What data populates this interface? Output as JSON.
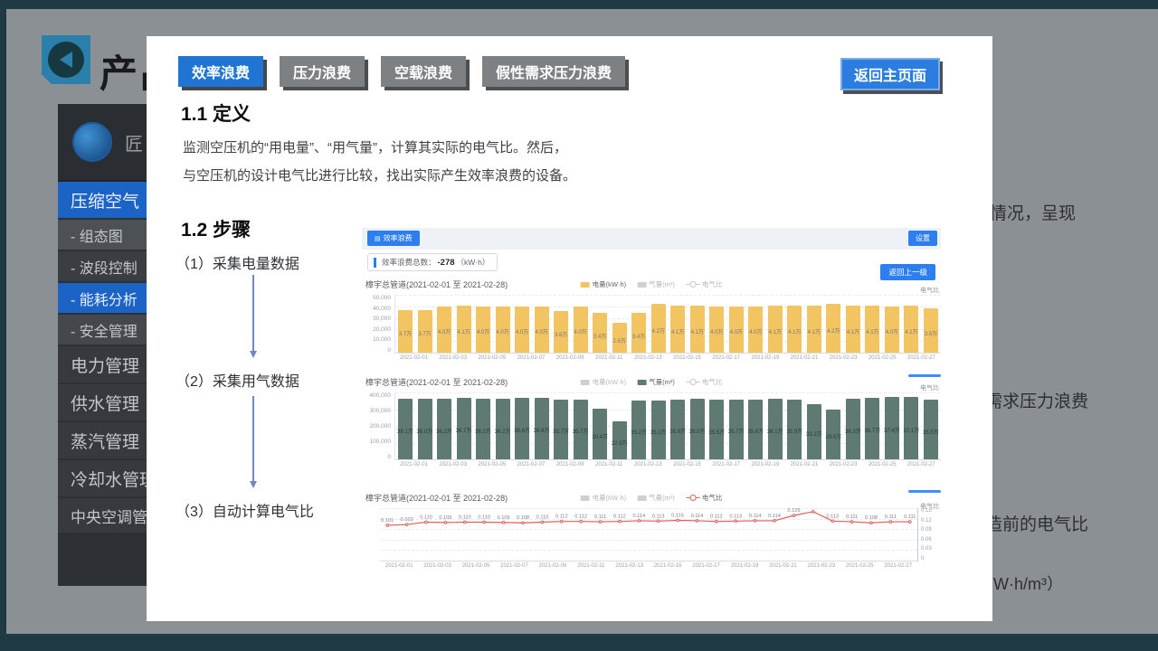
{
  "background_slide": {
    "title": "产品",
    "sidebar": {
      "brand": "匠",
      "items": [
        {
          "label": "压缩空气",
          "h": 40,
          "fs": 19,
          "bg": "#1b63c5",
          "active": true
        },
        {
          "label": "- 组态图",
          "h": 33,
          "fs": 16,
          "bg": "#4d5055",
          "active": false
        },
        {
          "label": "- 波段控制",
          "h": 33,
          "fs": 16,
          "bg": "#3a3d42",
          "active": false
        },
        {
          "label": "- 能耗分析",
          "h": 33,
          "fs": 16,
          "bg": "#1b63c5",
          "active": true
        },
        {
          "label": "- 安全管理",
          "h": 33,
          "fs": 16,
          "bg": "#44474c",
          "active": false
        },
        {
          "label": "电力管理",
          "h": 40,
          "fs": 19,
          "bg": "#37393e",
          "active": false
        },
        {
          "label": "供水管理",
          "h": 40,
          "fs": 19,
          "bg": "#37393e",
          "active": false
        },
        {
          "label": "蒸汽管理",
          "h": 40,
          "fs": 19,
          "bg": "#37393e",
          "active": false
        },
        {
          "label": "冷却水管理",
          "h": 40,
          "fs": 19,
          "bg": "#37393e",
          "active": false
        },
        {
          "label": "中央空调管理",
          "h": 38,
          "fs": 17,
          "bg": "#37393e",
          "active": false
        }
      ]
    },
    "fragments": [
      "情况，呈现",
      "需求压力浪费",
      "造前的电气比",
      "W·h/m³）"
    ]
  },
  "panel": {
    "tabs": [
      {
        "label": "效率浪费",
        "active": true
      },
      {
        "label": "压力浪费",
        "active": false
      },
      {
        "label": "空载浪费",
        "active": false
      },
      {
        "label": "假性需求压力浪费",
        "active": false
      }
    ],
    "back_button": "返回主页面",
    "sections": {
      "def_heading": "1.1 定义",
      "def_line1": "监测空压机的“用电量”、“用气量”，计算其实际的电气比。然后，",
      "def_line2": "与空压机的设计电气比进行比较，找出实际产生效率浪费的设备。",
      "steps_heading": "1.2 步骤",
      "steps": [
        "（1）采集电量数据",
        "（2）采集用气数据",
        "（3）自动计算电气比"
      ]
    },
    "app": {
      "tool_button": "效率浪费",
      "tool_icon": {
        "name": "bar-chart-icon",
        "glyph": "▤"
      },
      "settings_button": "设置",
      "summary_prefix": "效率浪费总数：",
      "summary_value": "-278",
      "summary_unit": "（kW·h）",
      "back_link": "返回上一级"
    }
  },
  "chart_data": [
    {
      "type": "bar",
      "title": "樟宇总管道(2021-02-01 至 2021-02-28)",
      "right_axis_label": "电气比",
      "bar_color": "#f2c462",
      "label_color": "#75787c",
      "legend": [
        {
          "label": "电量(kW·h)",
          "type": "square",
          "color": "#f2c462",
          "text_color": "#5f6468"
        },
        {
          "label": "气量(m³)",
          "type": "square",
          "color": "#ccd0d5",
          "text_color": "#b3b8bd"
        },
        {
          "label": "电气比",
          "type": "ring",
          "color": "#c4c8cd",
          "text_color": "#b3b8bd"
        }
      ],
      "ylim": [
        0,
        50000
      ],
      "yticks": [
        "50,000",
        "40,000",
        "30,000",
        "20,000",
        "10,000",
        "0"
      ],
      "x_ticks": [
        "2021-02-01",
        "2021-02-03",
        "2021-02-05",
        "2021-02-07",
        "2021-02-09",
        "2021-02-11",
        "2021-02-13",
        "2021-02-15",
        "2021-02-17",
        "2021-02-19",
        "2021-02-21",
        "2021-02-23",
        "2021-02-25",
        "2021-02-27"
      ],
      "values": [
        37000,
        37000,
        40000,
        41000,
        40000,
        40000,
        40000,
        40000,
        36000,
        40000,
        34000,
        26000,
        34000,
        42000,
        41000,
        41000,
        40000,
        40000,
        40000,
        41000,
        41000,
        41000,
        42000,
        41000,
        41000,
        40000,
        41000,
        38000
      ],
      "labels": [
        "3.7万",
        "3.7万",
        "4.0万",
        "4.1万",
        "4.0万",
        "4.0万",
        "4.0万",
        "4.0万",
        "3.6万",
        "4.0万",
        "3.4万",
        "2.6万",
        "3.4万",
        "4.2万",
        "4.1万",
        "4.1万",
        "4.0万",
        "4.0万",
        "4.0万",
        "4.1万",
        "4.1万",
        "4.1万",
        "4.2万",
        "4.1万",
        "4.1万",
        "4.0万",
        "4.1万",
        "3.8万"
      ]
    },
    {
      "type": "bar",
      "title": "樟宇总管道(2021-02-01 至 2021-02-28)",
      "right_axis_label": "电气比",
      "bar_color": "#5f7a73",
      "label_color": "#2f3835",
      "legend": [
        {
          "label": "电量(kW·h)",
          "type": "square",
          "color": "#ccd0d5",
          "text_color": "#b3b8bd"
        },
        {
          "label": "气量(m³)",
          "type": "square",
          "color": "#5f7a73",
          "text_color": "#5f6468"
        },
        {
          "label": "电气比",
          "type": "ring",
          "color": "#c4c8cd",
          "text_color": "#b3b8bd"
        }
      ],
      "ylim": [
        0,
        400000
      ],
      "yticks": [
        "400,000",
        "300,000",
        "200,000",
        "100,000",
        "0"
      ],
      "x_ticks": [
        "2021-02-01",
        "2021-02-03",
        "2021-02-05",
        "2021-02-07",
        "2021-02-09",
        "2021-02-11",
        "2021-02-13",
        "2021-02-15",
        "2021-02-17",
        "2021-02-19",
        "2021-02-21",
        "2021-02-23",
        "2021-02-25",
        "2021-02-27"
      ],
      "values": [
        361000,
        360000,
        362000,
        367000,
        362000,
        362000,
        366000,
        366000,
        357000,
        357000,
        304000,
        229000,
        352000,
        351000,
        358000,
        360000,
        355000,
        357000,
        356000,
        361000,
        359000,
        332000,
        296000,
        363000,
        367000,
        374000,
        371000,
        355000
      ],
      "labels": [
        "36.1万",
        "36.0万",
        "36.2万",
        "36.7万",
        "36.2万",
        "36.2万",
        "36.6万",
        "36.6万",
        "35.7万",
        "35.7万",
        "30.4万",
        "22.9万",
        "35.2万",
        "35.1万",
        "35.8万",
        "36.0万",
        "35.5万",
        "35.7万",
        "35.6万",
        "36.1万",
        "35.9万",
        "33.2万",
        "29.6万",
        "36.3万",
        "36.7万",
        "37.4万",
        "37.1万",
        "35.5万"
      ]
    },
    {
      "type": "line",
      "title": "樟宇总管道(2021-02-01 至 2021-02-28)",
      "right_axis_label": "电气比",
      "line_color": "#e25d55",
      "label_color": "#7c8086",
      "legend": [
        {
          "label": "电量(kW·h)",
          "type": "square",
          "color": "#ccd0d5",
          "text_color": "#b3b8bd"
        },
        {
          "label": "气量(m³)",
          "type": "square",
          "color": "#ccd0d5",
          "text_color": "#b3b8bd"
        },
        {
          "label": "电气比",
          "type": "ring",
          "color": "#e25d55",
          "text_color": "#5f6468"
        }
      ],
      "ylim": [
        0,
        0.15
      ],
      "yticks_right": [
        "0.15",
        "0.12",
        "0.09",
        "0.06",
        "0.03",
        "0"
      ],
      "x_ticks": [
        "2021-02-01",
        "2021-02-03",
        "2021-02-05",
        "2021-02-07",
        "2021-02-09",
        "2021-02-11",
        "2021-02-13",
        "2021-02-15",
        "2021-02-17",
        "2021-02-19",
        "2021-02-21",
        "2021-02-23",
        "2021-02-25",
        "2021-02-27"
      ],
      "values": [
        0.101,
        0.103,
        0.11,
        0.109,
        0.11,
        0.11,
        0.109,
        0.108,
        0.11,
        0.112,
        0.112,
        0.111,
        0.112,
        0.114,
        0.113,
        0.115,
        0.114,
        0.112,
        0.113,
        0.114,
        0.114,
        0.129,
        0.14,
        0.113,
        0.111,
        0.108,
        0.111,
        0.111
      ],
      "labels": [
        "0.101",
        "0.103",
        "0.110",
        "0.109",
        "0.110",
        "0.110",
        "0.109",
        "0.108",
        "0.110",
        "0.112",
        "0.112",
        "0.111",
        "0.112",
        "0.114",
        "0.113",
        "0.115",
        "0.114",
        "0.112",
        "0.113",
        "0.114",
        "0.114",
        "0.129",
        "0.140",
        "0.113",
        "0.111",
        "0.108",
        "0.111",
        "0.111"
      ]
    }
  ]
}
